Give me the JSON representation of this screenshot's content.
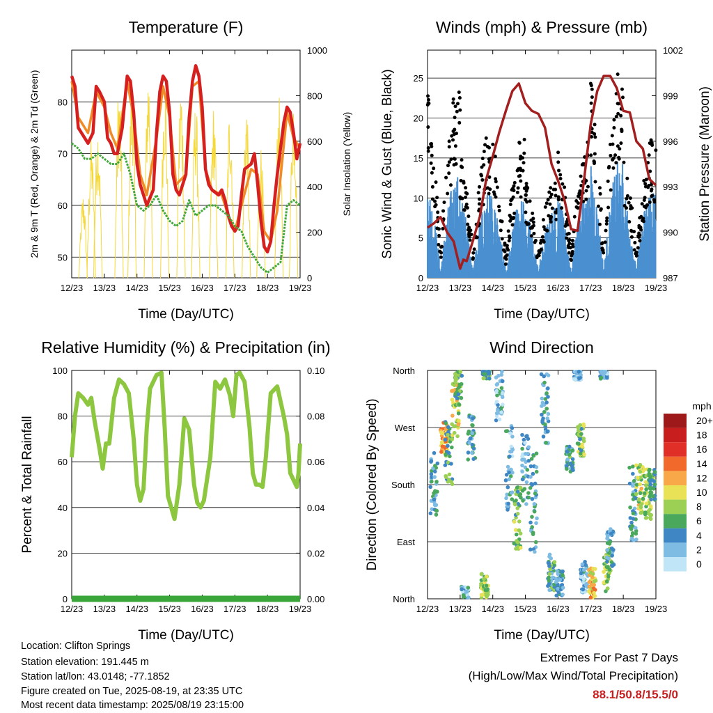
{
  "chart_data": [
    {
      "id": "temperature",
      "type": "line",
      "title": "Temperature (F)",
      "xlabel": "Time (Day/UTC)",
      "ylabel": "2m & 9m T (Red, Orange) & 2m Td (Green)",
      "y2label": "Solar Insolation (Yellow)",
      "x_ticks": [
        "12/23",
        "13/23",
        "14/23",
        "15/23",
        "16/23",
        "17/23",
        "18/23",
        "19/23"
      ],
      "ylim": [
        46,
        90
      ],
      "y_ticks": [
        50,
        60,
        70,
        80
      ],
      "y2lim": [
        0,
        1000
      ],
      "y2_ticks": [
        0,
        200,
        400,
        600,
        800,
        1000
      ],
      "grid": true,
      "series": [
        {
          "color": "#d62020",
          "x": [
            0,
            0.1,
            0.2,
            0.3,
            0.4,
            0.5,
            0.65,
            0.75,
            0.85,
            1,
            1.1,
            1.2,
            1.3,
            1.4,
            1.55,
            1.7,
            1.8,
            1.9,
            2,
            2.1,
            2.2,
            2.3,
            2.5,
            2.6,
            2.7,
            2.8,
            2.9,
            3,
            3.1,
            3.2,
            3.3,
            3.5,
            3.6,
            3.7,
            3.8,
            3.9,
            4,
            4.1,
            4.2,
            4.3,
            4.5,
            4.6,
            4.7,
            4.8,
            4.9,
            5,
            5.1,
            5.2,
            5.3,
            5.5,
            5.6,
            5.7,
            5.8,
            5.9,
            6,
            6.1,
            6.2,
            6.3,
            6.5,
            6.6,
            6.7,
            6.8,
            6.9,
            7
          ],
          "values": [
            85,
            83,
            75,
            74,
            73,
            72,
            74,
            83,
            82,
            80,
            73,
            72,
            70,
            70,
            75,
            85,
            84,
            78,
            68,
            64,
            62,
            60,
            63,
            74,
            82,
            85,
            84,
            78,
            66,
            63,
            62,
            66,
            77,
            84,
            87,
            85,
            79,
            67,
            64,
            63,
            62,
            63,
            61,
            58,
            56,
            55,
            56,
            62,
            67,
            68,
            70,
            64,
            57,
            52,
            51,
            53,
            60,
            66,
            76,
            79,
            78,
            74,
            69,
            72
          ]
        },
        {
          "color": "#f08c28",
          "x": [
            0,
            0.2,
            0.3,
            0.5,
            0.75,
            1,
            1.2,
            1.4,
            1.7,
            1.9,
            2.1,
            2.3,
            2.6,
            2.8,
            3,
            3.2,
            3.5,
            3.7,
            3.9,
            4.1,
            4.3,
            4.6,
            4.8,
            5,
            5.2,
            5.5,
            5.7,
            5.9,
            6.1,
            6.3,
            6.6,
            6.8,
            7
          ],
          "values": [
            84,
            77,
            76,
            74,
            82,
            79,
            74,
            71,
            84,
            77,
            66,
            62,
            73,
            83,
            77,
            64,
            66,
            83,
            84,
            67,
            63,
            62,
            58,
            55,
            60,
            67,
            66,
            55,
            53,
            59,
            78,
            73,
            71
          ]
        },
        {
          "color": "#41a83a",
          "x": [
            0,
            0.2,
            0.4,
            0.6,
            0.8,
            1,
            1.2,
            1.4,
            1.6,
            1.8,
            2,
            2.2,
            2.4,
            2.6,
            2.8,
            3,
            3.2,
            3.4,
            3.6,
            3.8,
            4,
            4.2,
            4.4,
            4.6,
            4.8,
            5,
            5.2,
            5.4,
            5.6,
            5.8,
            6,
            6.2,
            6.4,
            6.6,
            6.8,
            7
          ],
          "values": [
            72,
            71,
            69,
            69,
            70,
            69,
            68,
            68,
            70,
            66,
            60,
            59,
            60,
            62,
            59,
            57,
            56,
            57,
            61,
            58,
            59,
            60,
            60,
            59,
            58,
            56,
            55,
            52,
            50,
            48,
            47,
            48,
            49,
            60,
            61,
            60
          ]
        }
      ],
      "insolation_peaks": [
        {
          "day": 0.35,
          "peak": 380
        },
        {
          "day": 0.6,
          "peak": 620
        },
        {
          "day": 0.8,
          "peak": 700
        },
        {
          "day": 1.45,
          "peak": 870
        },
        {
          "day": 1.85,
          "peak": 920
        },
        {
          "day": 2.35,
          "peak": 960
        },
        {
          "day": 2.85,
          "peak": 900
        },
        {
          "day": 3.35,
          "peak": 880
        },
        {
          "day": 3.8,
          "peak": 790
        },
        {
          "day": 4.35,
          "peak": 770
        },
        {
          "day": 4.85,
          "peak": 780
        },
        {
          "day": 5.35,
          "peak": 780
        },
        {
          "day": 5.8,
          "peak": 600
        },
        {
          "day": 6.35,
          "peak": 800
        },
        {
          "day": 6.8,
          "peak": 850
        }
      ],
      "insolation_color": "#f5d83a"
    },
    {
      "id": "winds",
      "type": "scatter",
      "title": "Winds (mph) & Pressure (mb)",
      "xlabel": "Time (Day/UTC)",
      "ylabel": "Sonic Wind & Gust (Blue, Black)",
      "y2label": "Station Pressure (Maroon)",
      "x_ticks": [
        "12/23",
        "13/23",
        "14/23",
        "15/23",
        "16/23",
        "17/23",
        "18/23",
        "19/23"
      ],
      "ylim": [
        0,
        28.5
      ],
      "y_ticks": [
        0,
        5,
        10,
        15,
        20,
        25
      ],
      "y2lim": [
        987,
        1002
      ],
      "y2_ticks": [
        987,
        990,
        993,
        996,
        999,
        1002
      ],
      "grid": true,
      "daily_max_gust": [
        24.5,
        19,
        18,
        13,
        17,
        26.5,
        17.5
      ],
      "daily_max_wind": [
        13,
        11,
        10,
        9,
        11,
        15,
        12
      ],
      "pressure": {
        "color": "#a31f1f",
        "x": [
          0,
          0.2,
          0.4,
          0.6,
          0.8,
          1,
          1.1,
          1.2,
          1.4,
          1.6,
          1.8,
          2,
          2.2,
          2.4,
          2.6,
          2.8,
          3,
          3.2,
          3.4,
          3.6,
          3.8,
          4,
          4.2,
          4.4,
          4.6,
          4.8,
          5,
          5.2,
          5.4,
          5.6,
          5.8,
          6,
          6.2,
          6.4,
          6.6,
          6.8,
          7
        ],
        "values": [
          990.3,
          990.6,
          991,
          990,
          989.4,
          987.6,
          988.2,
          988.1,
          989.5,
          991,
          993.5,
          995,
          996.6,
          998,
          999.3,
          999.8,
          998.5,
          998,
          997.8,
          996.9,
          994.5,
          993.4,
          992.1,
          990.2,
          990.1,
          993.5,
          997.1,
          999.3,
          1000.3,
          1000.3,
          999.5,
          998,
          997.9,
          996,
          995.5,
          993.5,
          993.1
        ]
      },
      "wind_color": "#4a90d0",
      "gust_color": "#000000"
    },
    {
      "id": "humidity",
      "type": "line",
      "title": "Relative Humidity (%) & Precipitation (in)",
      "xlabel": "Time (Day/UTC)",
      "ylabel": "Percent & Total Rainfall",
      "x_ticks": [
        "12/23",
        "13/23",
        "14/23",
        "15/23",
        "16/23",
        "17/23",
        "18/23",
        "19/23"
      ],
      "ylim": [
        0,
        100
      ],
      "y_ticks": [
        0,
        20,
        40,
        60,
        80,
        100
      ],
      "y2lim": [
        0,
        0.1
      ],
      "y2_ticks": [
        "0.00",
        "0.02",
        "0.04",
        "0.06",
        "0.08",
        "0.10"
      ],
      "grid": true,
      "series": [
        {
          "color": "#8dc63f",
          "x": [
            0,
            0.1,
            0.2,
            0.35,
            0.5,
            0.6,
            0.7,
            0.85,
            0.95,
            1.05,
            1.15,
            1.3,
            1.45,
            1.6,
            1.75,
            1.9,
            2,
            2.1,
            2.2,
            2.3,
            2.4,
            2.6,
            2.75,
            2.85,
            2.95,
            3.05,
            3.15,
            3.3,
            3.45,
            3.6,
            3.75,
            3.85,
            3.95,
            4.05,
            4.25,
            4.4,
            4.55,
            4.7,
            4.85,
            4.95,
            5.05,
            5.15,
            5.3,
            5.45,
            5.55,
            5.65,
            5.75,
            5.85,
            5.95,
            6.1,
            6.3,
            6.5,
            6.6,
            6.7,
            6.8,
            6.9,
            6.95,
            7
          ],
          "values": [
            62,
            80,
            90,
            88,
            85,
            88,
            78,
            66,
            57,
            68,
            68,
            88,
            96,
            94,
            90,
            70,
            50,
            43,
            48,
            75,
            92,
            98,
            99,
            75,
            45,
            40,
            35,
            50,
            79,
            74,
            50,
            42,
            40,
            43,
            62,
            95,
            92,
            96,
            89,
            80,
            98,
            99,
            95,
            75,
            55,
            50,
            50,
            49,
            62,
            90,
            93,
            80,
            72,
            55,
            52,
            49,
            55,
            68
          ]
        },
        {
          "color": "#3aa63a",
          "x": [
            0,
            7
          ],
          "values": [
            0,
            0
          ]
        }
      ]
    },
    {
      "id": "direction",
      "type": "scatter",
      "title": "Wind Direction",
      "xlabel": "Time (Day/UTC)",
      "ylabel": "Direction (Colored By Speed)",
      "x_ticks": [
        "12/23",
        "13/23",
        "14/23",
        "15/23",
        "16/23",
        "17/23",
        "18/23",
        "19/23"
      ],
      "y_ticks": [
        "North",
        "East",
        "South",
        "West",
        "North"
      ],
      "ylim": [
        0,
        360
      ],
      "grid": true,
      "clusters": [
        {
          "x": 0.2,
          "dir": 180,
          "spread": 50,
          "spd": 4
        },
        {
          "x": 0.5,
          "dir": 255,
          "spread": 25,
          "spd": 12
        },
        {
          "x": 0.65,
          "dir": 230,
          "spread": 50,
          "spd": 6
        },
        {
          "x": 0.85,
          "dir": 295,
          "spread": 45,
          "spd": 9
        },
        {
          "x": 0.95,
          "dir": 330,
          "spread": 30,
          "spd": 6
        },
        {
          "x": 1.15,
          "dir": 10,
          "spread": 10,
          "spd": 3
        },
        {
          "x": 1.35,
          "dir": 250,
          "spread": 40,
          "spd": 4
        },
        {
          "x": 1.75,
          "dir": 20,
          "spread": 20,
          "spd": 8
        },
        {
          "x": 1.8,
          "dir": 355,
          "spread": 8,
          "spd": 6
        },
        {
          "x": 2.2,
          "dir": 320,
          "spread": 40,
          "spd": 3
        },
        {
          "x": 2.5,
          "dir": 210,
          "spread": 70,
          "spd": 3
        },
        {
          "x": 2.75,
          "dir": 125,
          "spread": 55,
          "spd": 7
        },
        {
          "x": 3,
          "dir": 200,
          "spread": 60,
          "spd": 3
        },
        {
          "x": 3.25,
          "dir": 150,
          "spread": 80,
          "spd": 4
        },
        {
          "x": 3.6,
          "dir": 300,
          "spread": 60,
          "spd": 4
        },
        {
          "x": 3.8,
          "dir": 40,
          "spread": 30,
          "spd": 5
        },
        {
          "x": 4.05,
          "dir": 25,
          "spread": 20,
          "spd": 4
        },
        {
          "x": 4.35,
          "dir": 220,
          "spread": 20,
          "spd": 5
        },
        {
          "x": 4.7,
          "dir": 250,
          "spread": 25,
          "spd": 7
        },
        {
          "x": 4.8,
          "dir": 35,
          "spread": 25,
          "spd": 3
        },
        {
          "x": 5.05,
          "dir": 25,
          "spread": 25,
          "spd": 11
        },
        {
          "x": 5.5,
          "dir": 45,
          "spread": 35,
          "spd": 8
        },
        {
          "x": 5.6,
          "dir": 80,
          "spread": 30,
          "spd": 4
        },
        {
          "x": 6.3,
          "dir": 150,
          "spread": 60,
          "spd": 4
        },
        {
          "x": 6.5,
          "dir": 175,
          "spread": 40,
          "spd": 9
        },
        {
          "x": 6.75,
          "dir": 165,
          "spread": 40,
          "spd": 8
        },
        {
          "x": 6.9,
          "dir": 180,
          "spread": 25,
          "spd": 6
        },
        {
          "x": 4.6,
          "dir": 355,
          "spread": 10,
          "spd": 2
        },
        {
          "x": 5.4,
          "dir": 355,
          "spread": 8,
          "spd": 3
        }
      ],
      "legend": {
        "title": "mph",
        "labels": [
          "20+",
          "18",
          "16",
          "14",
          "12",
          "10",
          "8",
          "6",
          "4",
          "2",
          "0"
        ],
        "colors": [
          "#9e1a1a",
          "#c81e1e",
          "#e02f26",
          "#f26a2b",
          "#f8a848",
          "#e9e257",
          "#9bd055",
          "#4aa85d",
          "#3f86c4",
          "#7fbce4",
          "#bfe5f7"
        ]
      }
    }
  ],
  "footer": {
    "location": "Location: Clifton Springs",
    "elevation": "Station elevation: 191.445 m",
    "latlon": "Station lat/lon: 43.0148; -77.1852",
    "created": "Figure created on Tue, 2025-08-19, at 23:35 UTC",
    "recent": "Most recent data timestamp: 2025/08/19 23:15:00"
  },
  "extremes": {
    "title": "Extremes For Past 7 Days",
    "subtitle": "(High/Low/Max Wind/Total Precipitation)",
    "values": "88.1/50.8/15.5/0"
  }
}
